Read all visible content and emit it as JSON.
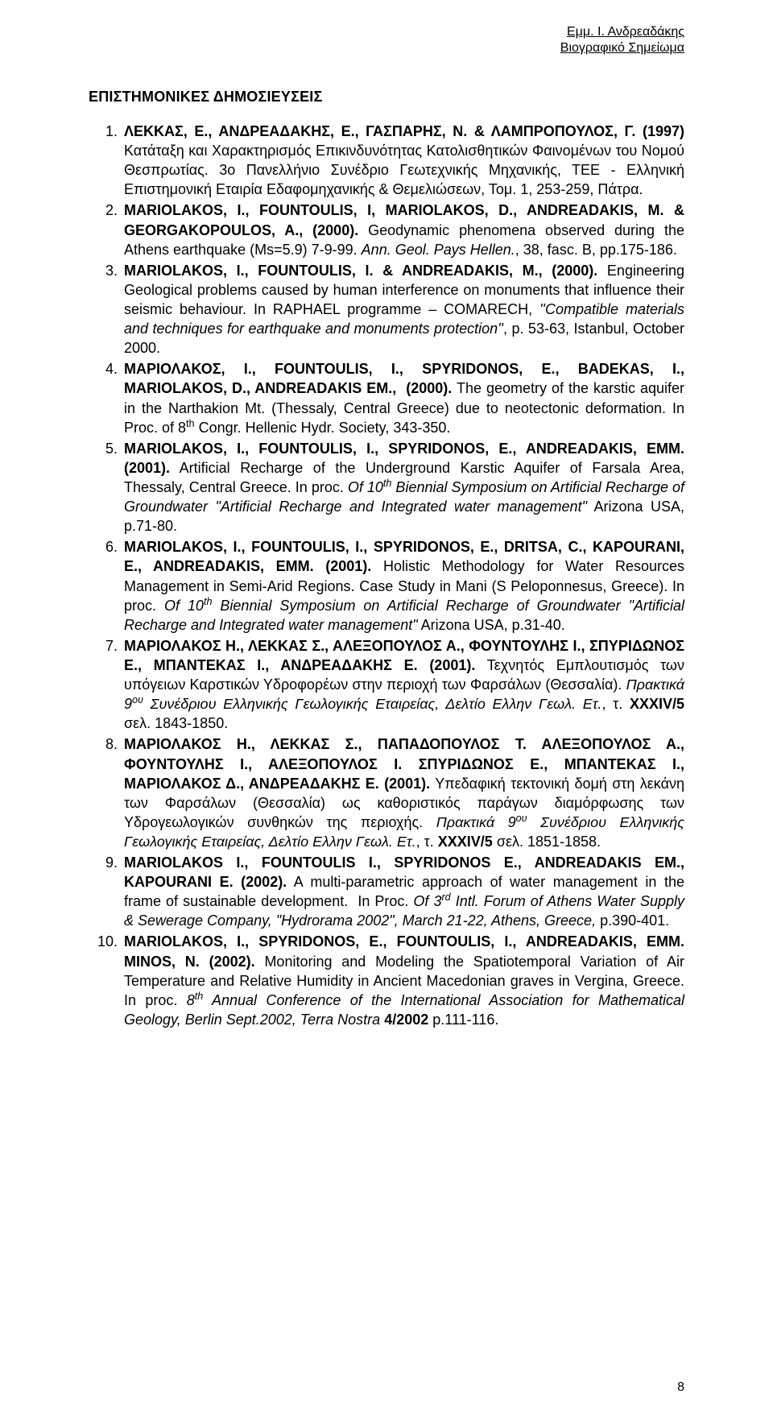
{
  "header": {
    "name": "Εμμ. Ι. Ανδρεαδάκης",
    "subtitle": "Βιογραφικό Σημείωμα"
  },
  "section_title": "ΕΠΙΣΤΗΜΟΝΙΚΕΣ ΔΗΜΟΣΙΕΥΣΕΙΣ",
  "items": [
    {
      "n": "1.",
      "html": "<b>ΛΕΚΚΑΣ, Ε., ΑΝΔΡΕΑΔΑΚΗΣ, Ε., ΓΑΣΠΑΡΗΣ, Ν. &amp; ΛΑΜΠΡΟΠΟΥΛΟΣ, Γ. (1997)</b> Κατάταξη και Χαρακτηρισμός Επικινδυνότητας Κατολισθητικών Φαινομένων του Νομού Θεσπρωτίας. 3ο Πανελλήνιο Συνέδριο Γεωτεχνικής Μηχανικής, ΤΕΕ - Ελληνική Επιστημονική Εταιρία Εδαφομηχανικής &amp; Θεμελιώσεων, Τομ. 1, 253-259, Πάτρα."
    },
    {
      "n": "2.",
      "html": "<b>MARIOLAKOS, I., FOUNTOULIS, I, MARIOLAKOS, D., ANDREADAKIS, M. &amp; GEORGAKOPOULOS, A., (2000).</b> Geodynamic phenomena observed during the Athens earthquake (Ms=5.9) 7-9-99. <i>Ann. Geol. Pays Hellen.</i>, 38, fasc. B, pp.175-186."
    },
    {
      "n": "3.",
      "html": "<b>MARIOLAKOS, I., FOUNTOULIS, I. &amp; ANDREADAKIS, M., (2000).</b> Engineering Geological problems caused by human interference on monuments that influence their seismic behaviour. In RAPHAEL programme – COMARECH, <i>''Compatible materials and techniques for earthquake and monuments protection''</i>, p. 53-63, Istanbul, October 2000."
    },
    {
      "n": "4.",
      "html": "<b>ΜΑΡΙΟΛΑΚΟΣ, I., FOUNTOULIS, I., SPYRIDONOS, E., BADEKAS, I., MARIOLAKOS, D., ANDREADAKIS EM., &nbsp;(2000).</b> The geometry of the karstic aquifer in the Narthakion Mt. (Thessaly, Central Greece) due to neotectonic deformation. In Proc. of 8<sup>th</sup> Congr. Hellenic Hydr. Society, 343-350."
    },
    {
      "n": "5.",
      "html": "<b>MARIOLAKOS, I., FOUNTOULIS, I., SPYRIDONOS, E., ANDREADAKIS, EMM. (2001).</b> Artificial Recharge of the Underground Karstic Aquifer of Farsala Area, Thessaly, Central Greece. In proc. <i>Of 10<sup>th</sup> Biennial Symposium on Artificial Recharge of Groundwater \"Artificial Recharge and Integrated water management\"</i> Arizona USA, p.71-80."
    },
    {
      "n": "6.",
      "html": "<b>MARIOLAKOS, I., FOUNTOULIS, I., SPYRIDONOS, E., DRITSA, C., KAPOURANI, E., ANDREADAKIS, EMM. (2001).</b> Holistic Methodology for Water Resources Management in Semi-Arid Regions. Case Study in Mani (S Peloponnesus, Greece). In proc. <i>Of 10<sup>th</sup> Biennial Symposium on Artificial Recharge of Groundwater \"Artificial Recharge and Integrated water management\"</i> Arizona USA, p.31-40."
    },
    {
      "n": "7.",
      "html": "<b>ΜΑΡΙΟΛΑΚΟΣ Η., ΛΕΚΚΑΣ Σ., ΑΛΕΞΟΠΟΥΛΟΣ Α., ΦΟΥΝΤΟΥΛΗΣ Ι., ΣΠΥΡΙΔΩΝΟΣ Ε., ΜΠΑΝΤΕΚΑΣ Ι., ΑΝΔΡΕΑΔΑΚΗΣ Ε. (2001).</b> Τεχνητός Εμπλουτισμός των υπόγειων Καρστικών Υδροφορέων στην περιοχή των Φαρσάλων (Θεσσαλία). <i>Πρακτικά 9<sup>ου</sup> Συνέδριου Ελληνικής Γεωλογικής Εταιρείας, Δελτίο Ελλην Γεωλ. Ετ.</i>, τ. <b>XXXIV/5</b> σελ. 1843-1850."
    },
    {
      "n": "8.",
      "html": "<b>ΜΑΡΙΟΛΑΚΟΣ Η., ΛΕΚΚΑΣ Σ., ΠΑΠΑΔΟΠΟΥΛΟΣ Τ. ΑΛΕΞΟΠΟΥΛΟΣ Α., ΦΟΥΝΤΟΥΛΗΣ Ι., ΑΛΕΞΟΠΟΥΛΟΣ Ι. ΣΠΥΡΙΔΩΝΟΣ Ε., ΜΠΑΝΤΕΚΑΣ Ι., ΜΑΡΙΟΛΑΚΟΣ Δ., ΑΝΔΡΕΑΔΑΚΗΣ Ε. (2001).</b> Υπεδαφική τεκτονική δομή στη λεκάνη των Φαρσάλων (Θεσσαλία) ως καθοριστικός παράγων διαμόρφωσης των Υδρογεωλογικών συνθηκών της περιοχής. <i>Πρακτικά 9<sup>ου</sup> Συνέδριου Ελληνικής Γεωλογικής Εταιρείας, Δελτίο Ελλην Γεωλ. Ετ.</i>, τ. <b>XXXIV/5</b> σελ. 1851-1858."
    },
    {
      "n": "9.",
      "html": "<b>MARIOLAKOS I., FOUNTOULIS I., SPYRIDONOS E., ANDREADAKIS EM., KAPOURANI E. (2002).</b> A multi-parametric approach of water management in the frame of sustainable development. &nbsp;In Proc. <i>Of 3<sup>rd</sup> Intl. Forum of Athens Water Supply &amp; Sewerage Company, \"Hydrorama 2002\", March 21-22, Athens, Greece,</i> p.390-401."
    },
    {
      "n": "10.",
      "html": "<b>MARIOLAKOS, I., SPYRIDONOS, E., FOUNTOULIS, I., ANDREADAKIS, EMM. MINOS, N. (2002).</b> Monitoring and Modeling the Spatiotemporal Variation of Air Temperature and Relative Humidity in Ancient Macedonian graves in Vergina, Greece. In proc. <i>8<sup>th</sup> Annual Conference of the International Association for Mathematical Geology, Berlin Sept.2002, Terra Nostra</i> <b>4/2002</b> p.111-116."
    }
  ],
  "page_number": "8"
}
